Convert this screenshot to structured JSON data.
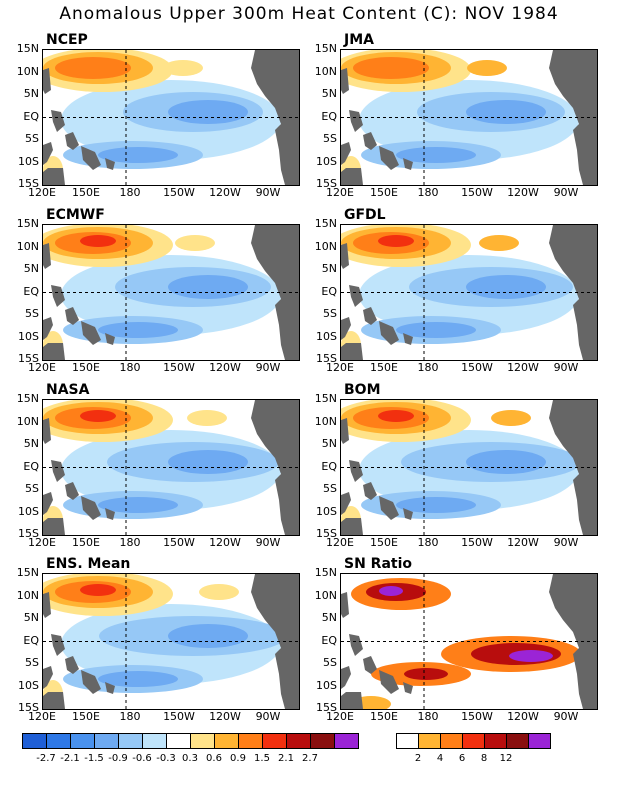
{
  "title": "Anomalous Upper 300m Heat Content (C): NOV 1984",
  "panels": [
    {
      "name": "NCEP"
    },
    {
      "name": "JMA"
    },
    {
      "name": "ECMWF"
    },
    {
      "name": "GFDL"
    },
    {
      "name": "NASA"
    },
    {
      "name": "BOM"
    },
    {
      "name": "ENS. Mean"
    },
    {
      "name": "SN Ratio"
    }
  ],
  "lat_labels": [
    "15N",
    "10N",
    "5N",
    "EQ",
    "5S",
    "10S",
    "15S"
  ],
  "lon_labels": [
    "120E",
    "150E",
    "180",
    "150W",
    "120W",
    "90W"
  ],
  "colorbar_anom": {
    "labels": [
      "-2.7",
      "-2.1",
      "-1.5",
      "-0.9",
      "-0.6",
      "-0.3",
      "0.3",
      "0.6",
      "0.9",
      "1.5",
      "2.1",
      "2.7"
    ],
    "colors": [
      "#1f5fd6",
      "#2e78e6",
      "#4a92ee",
      "#6eaaf2",
      "#96c8f6",
      "#bfe4fb",
      "#ffffff",
      "#ffe38a",
      "#ffb433",
      "#ff7f18",
      "#f2300f",
      "#b80d0d",
      "#8a0f0f",
      "#9b24d6"
    ]
  },
  "colorbar_sn": {
    "labels": [
      "2",
      "4",
      "6",
      "8",
      "12"
    ],
    "colors": [
      "#ffffff",
      "#ffb433",
      "#ff7f18",
      "#f2300f",
      "#b80d0d",
      "#8a0f0f",
      "#9b24d6"
    ]
  }
}
